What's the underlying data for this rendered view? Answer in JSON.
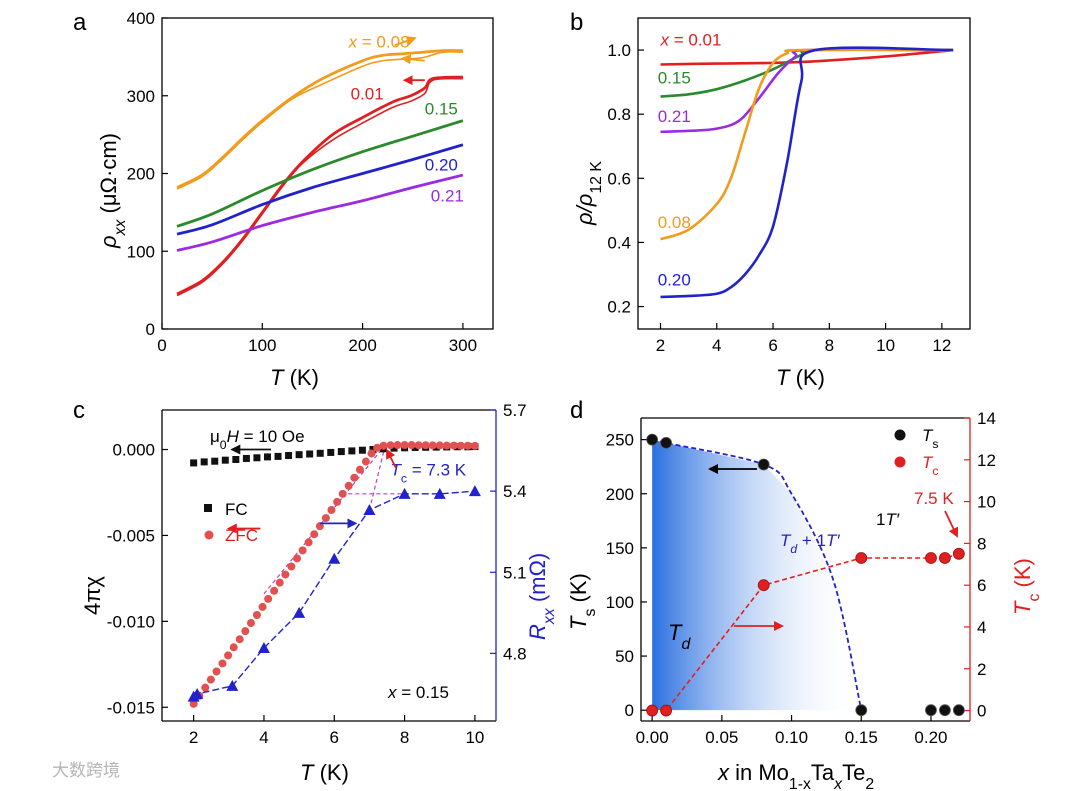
{
  "watermark": "大数跨境",
  "colors": {
    "orange": "#f29b1d",
    "red": "#e02020",
    "green": "#2b8a2b",
    "blue": "#2222cc",
    "purple": "#9b2be0",
    "zfc": "#e35050",
    "black": "#111111"
  },
  "chart_data": [
    {
      "id": "a",
      "panel_label": "a",
      "type": "line",
      "xlabel_sym": "T",
      "xlabel_unit": " (K)",
      "ylabel_sym": "ρ",
      "ylabel_sub": "xx",
      "ylabel_unit": " (μΩ·cm)",
      "xlim": [
        0,
        330
      ],
      "ylim": [
        0,
        400
      ],
      "xticks": [
        0,
        100,
        200,
        300
      ],
      "yticks": [
        0,
        100,
        200,
        300,
        400
      ],
      "annotations": [
        {
          "text": "x = 0.08",
          "color": "orange",
          "x": 186,
          "y": 362
        },
        {
          "text": "0.01",
          "color": "red",
          "x": 188,
          "y": 295
        },
        {
          "text": "0.15",
          "color": "green",
          "x": 262,
          "y": 276
        },
        {
          "text": "0.20",
          "color": "blue",
          "x": 262,
          "y": 204
        },
        {
          "text": "0.21",
          "color": "purple",
          "x": 268,
          "y": 164
        }
      ],
      "series": [
        {
          "key": "0.08",
          "color": "orange",
          "x": [
            15,
            40,
            60,
            80,
            100,
            130,
            160,
            200,
            220,
            240,
            260,
            280,
            300
          ],
          "y": [
            182,
            198,
            220,
            245,
            268,
            298,
            322,
            345,
            352,
            354,
            356,
            358,
            358
          ]
        },
        {
          "key": "0.01",
          "color": "red",
          "x": [
            15,
            40,
            60,
            80,
            100,
            120,
            140,
            170,
            200,
            230,
            248,
            262,
            270,
            300
          ],
          "y": [
            45,
            62,
            85,
            115,
            150,
            185,
            215,
            250,
            272,
            292,
            300,
            310,
            322,
            324
          ]
        },
        {
          "key": "0.15",
          "color": "green",
          "x": [
            15,
            50,
            100,
            150,
            200,
            250,
            300
          ],
          "y": [
            132,
            148,
            178,
            205,
            228,
            248,
            268
          ]
        },
        {
          "key": "0.20",
          "color": "blue",
          "x": [
            15,
            50,
            100,
            150,
            200,
            250,
            300
          ],
          "y": [
            122,
            134,
            160,
            182,
            200,
            218,
            237
          ]
        },
        {
          "key": "0.21",
          "color": "purple",
          "x": [
            15,
            50,
            100,
            150,
            200,
            250,
            300
          ],
          "y": [
            101,
            112,
            133,
            150,
            165,
            182,
            198
          ]
        }
      ]
    },
    {
      "id": "b",
      "panel_label": "b",
      "type": "line",
      "xlabel_sym": "T",
      "xlabel_unit": " (K)",
      "ylabel_sym": "ρ/ρ",
      "ylabel_sub": "12 K",
      "xlim": [
        1.2,
        13
      ],
      "ylim": [
        0.13,
        1.1
      ],
      "xticks": [
        2,
        4,
        6,
        8,
        10,
        12
      ],
      "yticks": [
        0.2,
        0.4,
        0.6,
        0.8,
        1.0
      ],
      "annotations": [
        {
          "text": "x = 0.01",
          "color": "red",
          "x": 2.0,
          "y": 1.015
        },
        {
          "text": "0.15",
          "color": "green",
          "x": 1.9,
          "y": 0.895
        },
        {
          "text": "0.21",
          "color": "purple",
          "x": 1.9,
          "y": 0.775
        },
        {
          "text": "0.08",
          "color": "orange",
          "x": 1.9,
          "y": 0.445
        },
        {
          "text": "0.20",
          "color": "blue",
          "x": 1.9,
          "y": 0.265
        }
      ],
      "series": [
        {
          "key": "0.01",
          "color": "red",
          "x": [
            2,
            4,
            6,
            7.5,
            10,
            12.4
          ],
          "y": [
            0.955,
            0.958,
            0.96,
            0.965,
            0.98,
            1.0
          ]
        },
        {
          "key": "0.15",
          "color": "green",
          "x": [
            2,
            3,
            4,
            5,
            6,
            7,
            7.5,
            12.4
          ],
          "y": [
            0.855,
            0.862,
            0.878,
            0.905,
            0.94,
            0.985,
            1.0,
            1.0
          ]
        },
        {
          "key": "0.21",
          "color": "purple",
          "x": [
            2,
            3,
            4,
            4.8,
            5.5,
            6.2,
            6.8,
            7.2,
            12.4
          ],
          "y": [
            0.745,
            0.748,
            0.755,
            0.78,
            0.85,
            0.93,
            0.98,
            1.0,
            1.0
          ]
        },
        {
          "key": "0.08",
          "color": "orange",
          "x": [
            2,
            3,
            4,
            4.5,
            5,
            5.5,
            6,
            6.5,
            7,
            12.4
          ],
          "y": [
            0.41,
            0.44,
            0.52,
            0.6,
            0.74,
            0.88,
            0.96,
            0.99,
            1.0,
            1.0
          ]
        },
        {
          "key": "0.20",
          "color": "blue",
          "x": [
            2,
            3,
            4,
            4.5,
            5,
            5.5,
            6,
            6.5,
            7,
            7.5,
            12.4
          ],
          "y": [
            0.23,
            0.233,
            0.24,
            0.26,
            0.3,
            0.36,
            0.45,
            0.65,
            0.9,
            1.0,
            1.0
          ]
        }
      ]
    },
    {
      "id": "c",
      "panel_label": "c",
      "type": "scatter",
      "xlabel_sym": "T",
      "xlabel_unit": " (K)",
      "ylabel": "4πχ",
      "ylabel2_sym": "R",
      "ylabel2_sub": "xx",
      "ylabel2_unit": " (mΩ)",
      "xlim": [
        1.1,
        10.6
      ],
      "ylim": [
        -0.0158,
        0.0023
      ],
      "y2lim": [
        4.55,
        5.7
      ],
      "xticks": [
        2,
        4,
        6,
        8,
        10
      ],
      "yticks": [
        -0.015,
        -0.01,
        -0.005,
        0.0
      ],
      "ytick_labels": [
        "-0.015",
        "-0.010",
        "-0.005",
        "0.000"
      ],
      "y2ticks": [
        4.8,
        5.1,
        5.4,
        5.7
      ],
      "y2tick_labels": [
        "4.8",
        "5.1",
        "5.4",
        "5.7"
      ],
      "title_sym": "μ",
      "title_sub": "0",
      "title_rest": "H = 10 Oe",
      "tc_label_sym": "T",
      "tc_label_sub": "c",
      "tc_label_rest": " = 7.3 K",
      "legend": [
        {
          "label": "FC",
          "color": "black",
          "marker": "square"
        },
        {
          "label": "ZFC",
          "color": "zfc",
          "marker": "circle"
        }
      ],
      "x_note_sym": "x",
      "x_note_rest": " = 0.15",
      "fc": {
        "x": [
          2.0,
          2.3,
          2.6,
          2.9,
          3.2,
          3.5,
          3.8,
          4.1,
          4.4,
          4.7,
          5.0,
          5.3,
          5.6,
          5.9,
          6.2,
          6.5,
          6.8,
          7.1,
          7.4,
          7.7,
          8.0,
          8.3,
          8.6,
          8.9,
          9.2,
          9.5,
          9.8,
          10.0
        ],
        "y": [
          -0.00078,
          -0.00072,
          -0.00068,
          -0.00062,
          -0.00058,
          -0.00052,
          -0.00048,
          -0.00043,
          -0.0004,
          -0.00035,
          -0.0003,
          -0.00026,
          -0.00022,
          -0.00017,
          -0.00012,
          -8e-05,
          -4e-05,
          0.0,
          4e-05,
          8e-05,
          0.0001,
          0.00012,
          0.00013,
          0.00014,
          0.00015,
          0.00016,
          0.00016,
          0.00017
        ]
      },
      "zfc": {
        "x": [
          2.0,
          2.16,
          2.33,
          2.49,
          2.65,
          2.82,
          2.98,
          3.14,
          3.31,
          3.47,
          3.63,
          3.8,
          3.96,
          4.12,
          4.29,
          4.45,
          4.61,
          4.78,
          4.94,
          5.1,
          5.27,
          5.43,
          5.59,
          5.76,
          5.92,
          6.08,
          6.24,
          6.41,
          6.57,
          6.73,
          6.9,
          7.06,
          7.22,
          7.4,
          7.6,
          7.8,
          8.0,
          8.2,
          8.4,
          8.6,
          8.8,
          9.0,
          9.2,
          9.4,
          9.6,
          9.8,
          10.0
        ],
        "y": [
          -0.0148,
          -0.01433,
          -0.01386,
          -0.01339,
          -0.01292,
          -0.01245,
          -0.01198,
          -0.01151,
          -0.01104,
          -0.01057,
          -0.0101,
          -0.00963,
          -0.00916,
          -0.00869,
          -0.00822,
          -0.00775,
          -0.00728,
          -0.00681,
          -0.00634,
          -0.00587,
          -0.0054,
          -0.00493,
          -0.00446,
          -0.00399,
          -0.00352,
          -0.00305,
          -0.00258,
          -0.00211,
          -0.00164,
          -0.00117,
          -0.0007,
          -0.00023,
          0.0001,
          0.00022,
          0.00025,
          0.00026,
          0.00026,
          0.00026,
          0.00025,
          0.00025,
          0.00024,
          0.00024,
          0.00023,
          0.00023,
          0.00022,
          0.00022,
          0.00021
        ]
      },
      "rxx": {
        "x": [
          2.0,
          2.1,
          3.1,
          4.0,
          5.0,
          6.0,
          7.0,
          8.0,
          9.0,
          10.0
        ],
        "y": [
          4.64,
          4.65,
          4.68,
          4.82,
          4.95,
          5.15,
          5.33,
          5.39,
          5.39,
          5.4
        ]
      }
    },
    {
      "id": "d",
      "panel_label": "d",
      "type": "scatter",
      "xlabel_sym": "x",
      "xlabel_text": " in Mo",
      "xlabel_sub1": "1-x",
      "xlabel_mid": "Ta",
      "xlabel_sub2": "x",
      "xlabel_end": "Te",
      "xlabel_sub3": "2",
      "ylabel_sym": "T",
      "ylabel_sub": "s",
      "ylabel_unit": " (K)",
      "ylabel2_sym": "T",
      "ylabel2_sub": "c",
      "ylabel2_unit": " (K)",
      "xlim": [
        -0.008,
        0.228
      ],
      "ylim": [
        -10,
        270
      ],
      "y2lim": [
        -0.5,
        14
      ],
      "xticks": [
        0.0,
        0.05,
        0.1,
        0.15,
        0.2
      ],
      "xtick_labels": [
        "0.00",
        "0.05",
        "0.10",
        "0.15",
        "0.20"
      ],
      "yticks": [
        0,
        50,
        100,
        150,
        200,
        250
      ],
      "y2ticks": [
        0,
        2,
        4,
        6,
        8,
        10,
        12,
        14
      ],
      "legend": [
        {
          "sym": "T",
          "sub": "s",
          "color": "black"
        },
        {
          "sym": "T",
          "sub": "c",
          "color": "red"
        }
      ],
      "region_labels": {
        "td_sym": "T",
        "td_sub": "d",
        "mix_a": "T",
        "mix_b": "d",
        "mix_c": " + 1",
        "mix_d": "T′",
        "one_t_a": "1",
        "one_t_b": "T′"
      },
      "tc_note": "7.5 K",
      "ts": {
        "x": [
          0.0,
          0.01,
          0.08,
          0.15,
          0.2,
          0.21,
          0.22
        ],
        "y": [
          250,
          247,
          227,
          0,
          0,
          0,
          0
        ]
      },
      "tc": {
        "x": [
          0.0,
          0.01,
          0.08,
          0.15,
          0.2,
          0.21,
          0.22
        ],
        "y": [
          0,
          0,
          6.0,
          7.3,
          7.3,
          7.3,
          7.5
        ]
      }
    }
  ]
}
